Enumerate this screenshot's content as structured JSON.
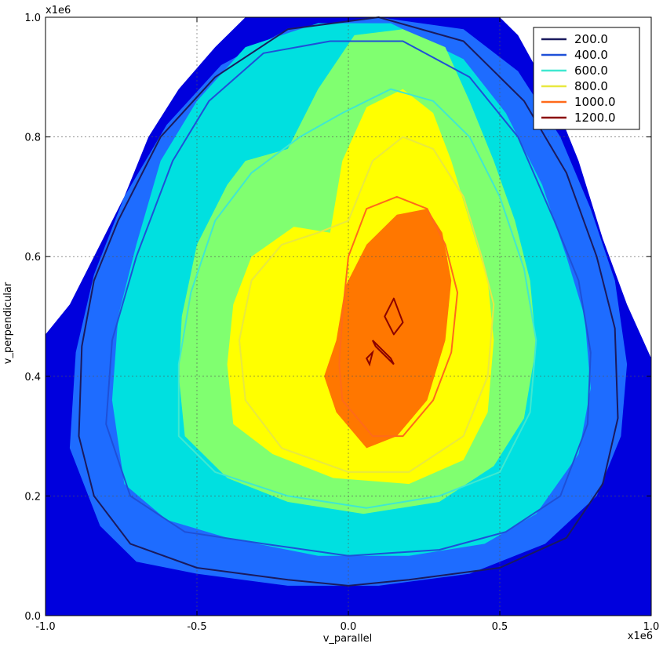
{
  "chart_data": {
    "type": "contour",
    "xlabel": "v_parallel",
    "ylabel": "v_perpendicular",
    "x_multiplier": "x1e6",
    "y_multiplier": "x1e6",
    "xlim": [
      -1.0,
      1.0
    ],
    "ylim": [
      0.0,
      1.0
    ],
    "x_ticks": [
      "-1.0",
      "-0.5",
      "0.0",
      "0.5",
      "1.0"
    ],
    "x_tick_values": [
      -1.0,
      -0.5,
      0.0,
      0.5,
      1.0
    ],
    "y_ticks": [
      "0.0",
      "0.2",
      "0.4",
      "0.6",
      "0.8",
      "1.0"
    ],
    "y_tick_values": [
      0.0,
      0.2,
      0.4,
      0.6,
      0.8,
      1.0
    ],
    "grid": true,
    "legend_position": "top-right",
    "filled_levels": [
      {
        "color": "#0000dd",
        "points": [
          [
            -1.0,
            0.0
          ],
          [
            1.0,
            0.0
          ],
          [
            1.0,
            0.43
          ],
          [
            0.92,
            0.52
          ],
          [
            0.84,
            0.63
          ],
          [
            0.76,
            0.76
          ],
          [
            0.68,
            0.86
          ],
          [
            0.56,
            0.97
          ],
          [
            0.5,
            1.0
          ],
          [
            -0.34,
            1.0
          ],
          [
            -0.44,
            0.95
          ],
          [
            -0.56,
            0.88
          ],
          [
            -0.66,
            0.8
          ],
          [
            -0.74,
            0.7
          ],
          [
            -0.84,
            0.6
          ],
          [
            -0.92,
            0.52
          ],
          [
            -1.0,
            0.47
          ]
        ]
      },
      {
        "color": "#1e6cff",
        "points": [
          [
            -0.92,
            0.28
          ],
          [
            -0.82,
            0.15
          ],
          [
            -0.7,
            0.09
          ],
          [
            -0.5,
            0.07
          ],
          [
            -0.2,
            0.05
          ],
          [
            0.1,
            0.05
          ],
          [
            0.4,
            0.07
          ],
          [
            0.65,
            0.12
          ],
          [
            0.82,
            0.2
          ],
          [
            0.9,
            0.3
          ],
          [
            0.92,
            0.42
          ],
          [
            0.88,
            0.56
          ],
          [
            0.8,
            0.68
          ],
          [
            0.7,
            0.8
          ],
          [
            0.56,
            0.91
          ],
          [
            0.38,
            0.98
          ],
          [
            0.1,
            1.0
          ],
          [
            -0.2,
            0.98
          ],
          [
            -0.42,
            0.92
          ],
          [
            -0.6,
            0.82
          ],
          [
            -0.74,
            0.7
          ],
          [
            -0.84,
            0.57
          ],
          [
            -0.9,
            0.44
          ]
        ]
      },
      {
        "color": "#00e0e0",
        "points": [
          [
            -0.74,
            0.22
          ],
          [
            -0.6,
            0.16
          ],
          [
            -0.4,
            0.13
          ],
          [
            -0.1,
            0.1
          ],
          [
            0.2,
            0.1
          ],
          [
            0.45,
            0.12
          ],
          [
            0.62,
            0.17
          ],
          [
            0.76,
            0.27
          ],
          [
            0.8,
            0.38
          ],
          [
            0.78,
            0.5
          ],
          [
            0.72,
            0.6
          ],
          [
            0.64,
            0.72
          ],
          [
            0.52,
            0.84
          ],
          [
            0.38,
            0.93
          ],
          [
            0.14,
            0.99
          ],
          [
            -0.1,
            0.99
          ],
          [
            -0.34,
            0.95
          ],
          [
            -0.5,
            0.86
          ],
          [
            -0.62,
            0.76
          ],
          [
            -0.7,
            0.62
          ],
          [
            -0.76,
            0.5
          ],
          [
            -0.78,
            0.36
          ]
        ]
      },
      {
        "color": "#80ff70",
        "points": [
          [
            -0.54,
            0.3
          ],
          [
            -0.4,
            0.23
          ],
          [
            -0.2,
            0.19
          ],
          [
            0.05,
            0.17
          ],
          [
            0.3,
            0.19
          ],
          [
            0.48,
            0.25
          ],
          [
            0.58,
            0.33
          ],
          [
            0.62,
            0.45
          ],
          [
            0.6,
            0.56
          ],
          [
            0.55,
            0.66
          ],
          [
            0.48,
            0.76
          ],
          [
            0.4,
            0.86
          ],
          [
            0.32,
            0.95
          ],
          [
            0.18,
            0.98
          ],
          [
            0.02,
            0.97
          ],
          [
            -0.1,
            0.88
          ],
          [
            -0.2,
            0.78
          ],
          [
            -0.34,
            0.76
          ],
          [
            -0.4,
            0.72
          ],
          [
            -0.5,
            0.62
          ],
          [
            -0.55,
            0.5
          ],
          [
            -0.56,
            0.4
          ]
        ]
      },
      {
        "color": "#ffff00",
        "points": [
          [
            -0.38,
            0.32
          ],
          [
            -0.25,
            0.27
          ],
          [
            -0.05,
            0.23
          ],
          [
            0.2,
            0.22
          ],
          [
            0.38,
            0.26
          ],
          [
            0.46,
            0.34
          ],
          [
            0.48,
            0.46
          ],
          [
            0.46,
            0.56
          ],
          [
            0.4,
            0.66
          ],
          [
            0.34,
            0.76
          ],
          [
            0.28,
            0.84
          ],
          [
            0.18,
            0.88
          ],
          [
            0.06,
            0.85
          ],
          [
            -0.02,
            0.76
          ],
          [
            -0.06,
            0.64
          ],
          [
            -0.18,
            0.65
          ],
          [
            -0.32,
            0.6
          ],
          [
            -0.38,
            0.52
          ],
          [
            -0.4,
            0.42
          ]
        ]
      },
      {
        "color": "#ff7700",
        "points": [
          [
            -0.04,
            0.34
          ],
          [
            0.06,
            0.28
          ],
          [
            0.16,
            0.3
          ],
          [
            0.26,
            0.36
          ],
          [
            0.32,
            0.46
          ],
          [
            0.34,
            0.56
          ],
          [
            0.31,
            0.64
          ],
          [
            0.26,
            0.68
          ],
          [
            0.16,
            0.67
          ],
          [
            0.06,
            0.62
          ],
          [
            -0.01,
            0.55
          ],
          [
            -0.04,
            0.46
          ],
          [
            -0.08,
            0.4
          ]
        ]
      }
    ],
    "series": [
      {
        "name": "200.0",
        "color": "#1a1a5e",
        "points": [
          [
            -0.88,
            0.45
          ],
          [
            -0.89,
            0.3
          ],
          [
            -0.84,
            0.2
          ],
          [
            -0.72,
            0.12
          ],
          [
            -0.5,
            0.08
          ],
          [
            -0.2,
            0.06
          ],
          [
            0.0,
            0.05
          ],
          [
            0.2,
            0.06
          ],
          [
            0.5,
            0.08
          ],
          [
            0.72,
            0.13
          ],
          [
            0.84,
            0.22
          ],
          [
            0.89,
            0.33
          ],
          [
            0.88,
            0.48
          ],
          [
            0.82,
            0.6
          ],
          [
            0.72,
            0.74
          ],
          [
            0.58,
            0.86
          ],
          [
            0.38,
            0.96
          ],
          [
            0.1,
            1.0
          ],
          [
            -0.2,
            0.98
          ],
          [
            -0.44,
            0.9
          ],
          [
            -0.62,
            0.8
          ],
          [
            -0.76,
            0.66
          ],
          [
            -0.84,
            0.56
          ]
        ]
      },
      {
        "name": "400.0",
        "color": "#1e50d8",
        "points": [
          [
            -0.8,
            0.32
          ],
          [
            -0.72,
            0.2
          ],
          [
            -0.54,
            0.14
          ],
          [
            -0.28,
            0.12
          ],
          [
            0.0,
            0.1
          ],
          [
            0.3,
            0.11
          ],
          [
            0.52,
            0.14
          ],
          [
            0.7,
            0.2
          ],
          [
            0.79,
            0.32
          ],
          [
            0.8,
            0.44
          ],
          [
            0.76,
            0.56
          ],
          [
            0.68,
            0.66
          ],
          [
            0.56,
            0.8
          ],
          [
            0.4,
            0.9
          ],
          [
            0.18,
            0.96
          ],
          [
            -0.06,
            0.96
          ],
          [
            -0.28,
            0.94
          ],
          [
            -0.46,
            0.86
          ],
          [
            -0.58,
            0.76
          ],
          [
            -0.7,
            0.6
          ],
          [
            -0.78,
            0.46
          ]
        ]
      },
      {
        "name": "600.0",
        "color": "#40e8d0",
        "points": [
          [
            -0.56,
            0.3
          ],
          [
            -0.44,
            0.24
          ],
          [
            -0.2,
            0.2
          ],
          [
            0.06,
            0.18
          ],
          [
            0.3,
            0.2
          ],
          [
            0.5,
            0.24
          ],
          [
            0.6,
            0.34
          ],
          [
            0.62,
            0.46
          ],
          [
            0.58,
            0.58
          ],
          [
            0.5,
            0.7
          ],
          [
            0.4,
            0.8
          ],
          [
            0.28,
            0.86
          ],
          [
            0.14,
            0.88
          ],
          [
            -0.02,
            0.84
          ],
          [
            -0.16,
            0.8
          ],
          [
            -0.32,
            0.74
          ],
          [
            -0.44,
            0.66
          ],
          [
            -0.52,
            0.54
          ],
          [
            -0.56,
            0.42
          ]
        ]
      },
      {
        "name": "800.0",
        "color": "#e8e840",
        "points": [
          [
            -0.34,
            0.36
          ],
          [
            -0.22,
            0.28
          ],
          [
            0.0,
            0.24
          ],
          [
            0.2,
            0.24
          ],
          [
            0.38,
            0.3
          ],
          [
            0.46,
            0.4
          ],
          [
            0.48,
            0.52
          ],
          [
            0.44,
            0.6
          ],
          [
            0.38,
            0.7
          ],
          [
            0.28,
            0.78
          ],
          [
            0.18,
            0.8
          ],
          [
            0.08,
            0.76
          ],
          [
            0.0,
            0.66
          ],
          [
            -0.1,
            0.64
          ],
          [
            -0.22,
            0.62
          ],
          [
            -0.32,
            0.56
          ],
          [
            -0.36,
            0.46
          ]
        ]
      },
      {
        "name": "1000.0",
        "color": "#ff6a1a",
        "points": [
          [
            -0.02,
            0.36
          ],
          [
            0.08,
            0.3
          ],
          [
            0.18,
            0.3
          ],
          [
            0.28,
            0.36
          ],
          [
            0.34,
            0.44
          ],
          [
            0.36,
            0.54
          ],
          [
            0.32,
            0.62
          ],
          [
            0.26,
            0.68
          ],
          [
            0.16,
            0.7
          ],
          [
            0.06,
            0.68
          ],
          [
            0.0,
            0.6
          ],
          [
            -0.02,
            0.5
          ],
          [
            -0.03,
            0.42
          ]
        ]
      },
      {
        "name": "1200.0",
        "color": "#8b0000",
        "points": [
          [
            0.12,
            0.5
          ],
          [
            0.15,
            0.53
          ],
          [
            0.18,
            0.49
          ],
          [
            0.15,
            0.47
          ]
        ]
      }
    ],
    "extra_contours": [
      {
        "color": "#8b0000",
        "points": [
          [
            0.08,
            0.46
          ],
          [
            0.14,
            0.43
          ],
          [
            0.15,
            0.42
          ],
          [
            0.09,
            0.45
          ]
        ]
      },
      {
        "color": "#8b0000",
        "points": [
          [
            0.06,
            0.43
          ],
          [
            0.08,
            0.44
          ],
          [
            0.07,
            0.42
          ]
        ]
      }
    ]
  }
}
